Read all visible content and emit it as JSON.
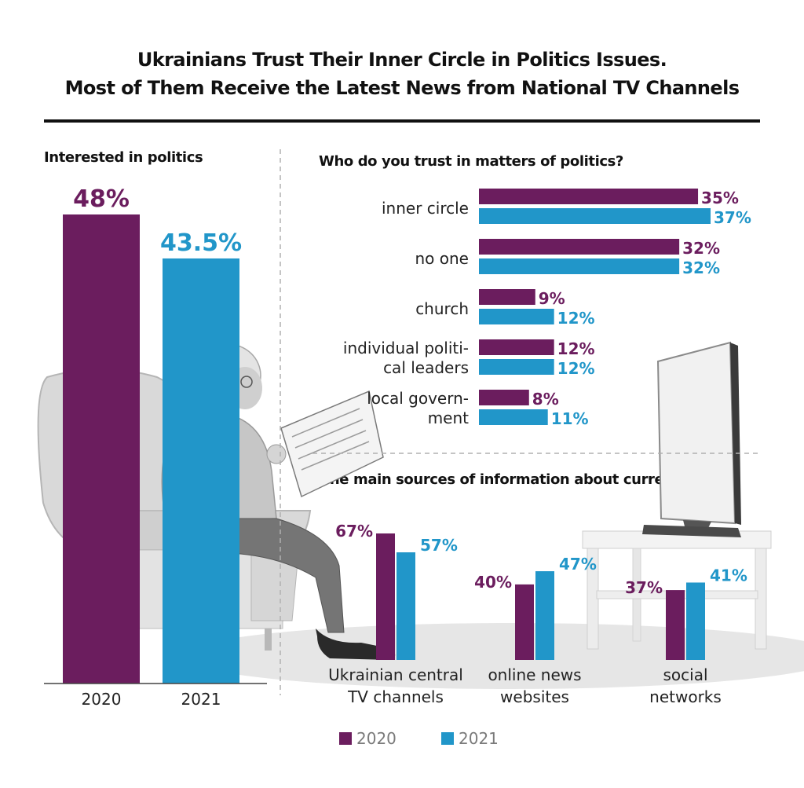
{
  "title": {
    "line1": "Ukrainians Trust Their Inner Circle in Politics Issues.",
    "line2": "Most of Them Receive the Latest News from National TV Channels"
  },
  "colors": {
    "y2020": "#6B1D5E",
    "y2021": "#2196C9"
  },
  "chart_data": [
    {
      "type": "bar",
      "title": "Interested in politics",
      "categories": [
        "2020",
        "2021"
      ],
      "values": [
        48,
        43.5
      ],
      "value_labels": [
        "48%",
        "43.5%"
      ],
      "ylim": [
        0,
        55
      ],
      "grid": false
    },
    {
      "type": "bar",
      "orientation": "horizontal",
      "title": "Who do you trust in matters of politics?",
      "categories": [
        [
          "inner circle"
        ],
        [
          "no one"
        ],
        [
          "church"
        ],
        [
          "individual politi-",
          "cal leaders"
        ],
        [
          "local govern-",
          "ment"
        ]
      ],
      "series": [
        {
          "name": "2020",
          "values": [
            35,
            32,
            9,
            12,
            8
          ]
        },
        {
          "name": "2021",
          "values": [
            37,
            32,
            12,
            12,
            11
          ]
        }
      ],
      "xlim": [
        0,
        40
      ],
      "grid": false
    },
    {
      "type": "bar",
      "title": "The main sources of information about current news",
      "categories": [
        [
          "Ukrainian central",
          "TV channels"
        ],
        [
          "online news",
          "websites"
        ],
        [
          "social",
          "networks"
        ]
      ],
      "series": [
        {
          "name": "2020",
          "values": [
            67,
            40,
            37
          ]
        },
        {
          "name": "2021",
          "values": [
            57,
            47,
            41
          ]
        }
      ],
      "ylim": [
        0,
        75
      ],
      "legend": "bottom",
      "grid": false
    }
  ]
}
